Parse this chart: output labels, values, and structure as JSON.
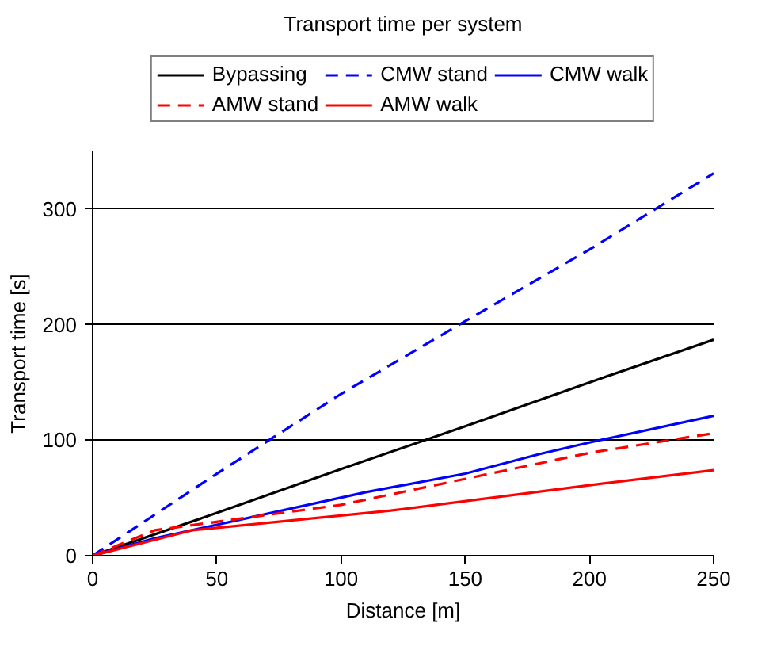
{
  "chart_data": {
    "type": "line",
    "title": "Transport time per system",
    "xlabel": "Distance [m]",
    "ylabel": "Transport time [s]",
    "xlim": [
      0,
      250
    ],
    "ylim": [
      0,
      350
    ],
    "xticks": [
      0,
      50,
      100,
      150,
      200,
      250
    ],
    "yticks": [
      0,
      100,
      200,
      300
    ],
    "grid": "y",
    "legend": "top",
    "marker": "none",
    "series": [
      {
        "name": "Bypassing",
        "color": "#000000",
        "line_style": "solid",
        "x": [
          0,
          50,
          100,
          150,
          200,
          250
        ],
        "values": [
          0,
          37,
          75,
          112,
          150,
          187
        ]
      },
      {
        "name": "CMW stand",
        "color": "#0000ff",
        "line_style": "dashed",
        "x": [
          0,
          50,
          100,
          150,
          200,
          250
        ],
        "values": [
          0,
          71,
          140,
          203,
          265,
          331
        ]
      },
      {
        "name": "CMW walk",
        "color": "#0000ff",
        "line_style": "solid",
        "x": [
          0,
          25,
          110,
          150,
          180,
          200,
          250
        ],
        "values": [
          0,
          15,
          55,
          71,
          88,
          98,
          121
        ]
      },
      {
        "name": "AMW stand",
        "color": "#ff0000",
        "line_style": "dashed",
        "x": [
          0,
          25,
          100,
          200,
          250
        ],
        "values": [
          0,
          22,
          44,
          89,
          106
        ]
      },
      {
        "name": "AMW walk",
        "color": "#ff0000",
        "line_style": "solid",
        "x": [
          0,
          40,
          120,
          200,
          250
        ],
        "values": [
          0,
          22,
          39,
          61,
          74
        ]
      }
    ]
  }
}
